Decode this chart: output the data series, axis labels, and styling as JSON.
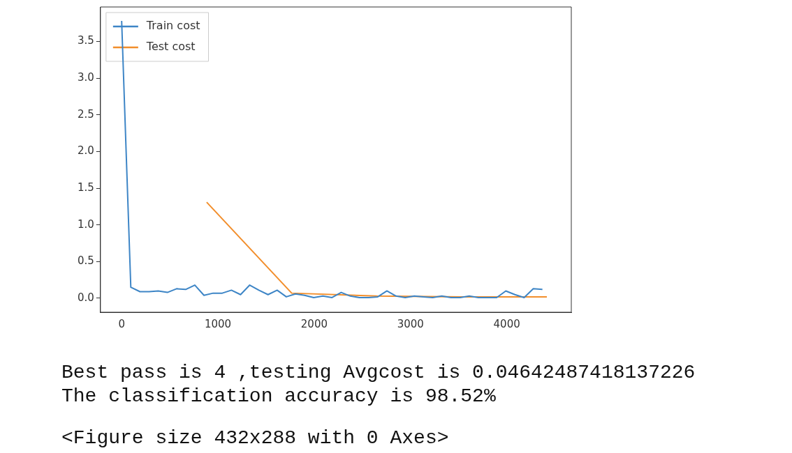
{
  "chart_data": {
    "type": "line",
    "xlim": [
      -220,
      4670
    ],
    "xticks": [
      0,
      1000,
      2000,
      3000,
      4000
    ],
    "ylim": [
      -0.19,
      3.97
    ],
    "yticks": [
      {
        "value": 0,
        "label": "0.0"
      },
      0.5,
      {
        "value": 1,
        "label": "1.0"
      },
      1.5,
      {
        "value": 2,
        "label": "2.0"
      },
      2.5,
      {
        "value": 3,
        "label": "3.0"
      },
      3.5
    ],
    "grid": false,
    "legend": "top left",
    "marker": "none",
    "line_style": "solid",
    "series": [
      {
        "name": "Train cost",
        "color": "#3d85c6",
        "x": [
          0,
          95,
          190,
          285,
          380,
          475,
          570,
          665,
          760,
          855,
          950,
          1045,
          1140,
          1235,
          1330,
          1425,
          1520,
          1615,
          1710,
          1805,
          1900,
          1995,
          2090,
          2185,
          2280,
          2375,
          2470,
          2565,
          2660,
          2755,
          2850,
          2945,
          3040,
          3135,
          3230,
          3325,
          3420,
          3515,
          3610,
          3705,
          3800,
          3895,
          3990,
          4085,
          4180,
          4275,
          4370
        ],
        "values": [
          3.78,
          0.15,
          0.09,
          0.09,
          0.1,
          0.08,
          0.13,
          0.12,
          0.18,
          0.04,
          0.07,
          0.07,
          0.11,
          0.05,
          0.18,
          0.11,
          0.05,
          0.11,
          0.02,
          0.06,
          0.04,
          0.01,
          0.03,
          0.01,
          0.08,
          0.03,
          0.01,
          0.01,
          0.02,
          0.1,
          0.03,
          0.01,
          0.03,
          0.02,
          0.01,
          0.03,
          0.01,
          0.01,
          0.03,
          0.01,
          0.01,
          0.01,
          0.1,
          0.05,
          0.01,
          0.13,
          0.12
        ]
      },
      {
        "name": "Test cost",
        "color": "#f28e2b",
        "x": [
          883,
          1766,
          2650,
          3533,
          4416
        ],
        "values": [
          1.31,
          0.07,
          0.03,
          0.02,
          0.02
        ]
      }
    ],
    "annotations": [
      "Best pass is 4 ,testing Avgcost is 0.04642487418137226",
      "The classification accuracy is 98.52%",
      "<Figure size 432x288 with 0 Axes>"
    ]
  }
}
